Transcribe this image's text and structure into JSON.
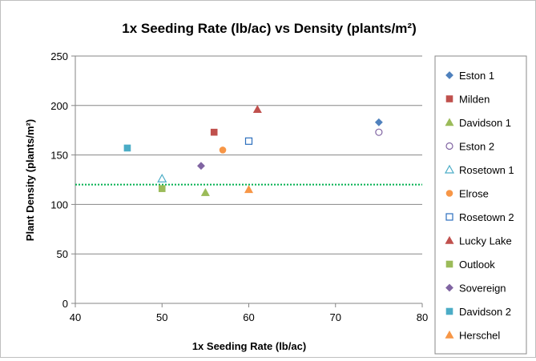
{
  "chart_data": {
    "type": "scatter",
    "title": "1x Seeding Rate (lb/ac) vs Density (plants/m²)",
    "xlabel": "1x Seeding Rate (lb/ac)",
    "ylabel": "Plant Density (plants/m²)",
    "xlim": [
      40,
      80
    ],
    "ylim": [
      0,
      250
    ],
    "xticks": [
      40,
      50,
      60,
      70,
      80
    ],
    "yticks": [
      0,
      50,
      100,
      150,
      200,
      250
    ],
    "grid": "horizontal",
    "legend_position": "right",
    "reference_line": {
      "y": 120,
      "color": "#00b050",
      "style": "dotted"
    },
    "series": [
      {
        "name": "Eston 1",
        "marker": "diamond",
        "color": "#4f81bd",
        "points": [
          [
            75,
            183
          ]
        ]
      },
      {
        "name": "Milden",
        "marker": "square",
        "color": "#c0504d",
        "points": [
          [
            56,
            173
          ]
        ]
      },
      {
        "name": "Davidson 1",
        "marker": "triangle",
        "color": "#9bbb59",
        "points": [
          [
            55,
            112
          ]
        ]
      },
      {
        "name": "Eston 2",
        "marker": "circle-open",
        "color": "#8064a2",
        "points": [
          [
            75,
            173
          ]
        ]
      },
      {
        "name": "Rosetown 1",
        "marker": "triangle-open",
        "color": "#4bacc6",
        "points": [
          [
            50,
            126
          ]
        ]
      },
      {
        "name": "Elrose",
        "marker": "circle",
        "color": "#f79646",
        "points": [
          [
            57,
            155
          ]
        ]
      },
      {
        "name": "Rosetown 2",
        "marker": "square-open",
        "color": "#2c6fbd",
        "points": [
          [
            60,
            164
          ]
        ]
      },
      {
        "name": "Lucky Lake",
        "marker": "triangle",
        "color": "#c0504d",
        "points": [
          [
            61,
            196
          ]
        ]
      },
      {
        "name": "Outlook",
        "marker": "square",
        "color": "#9bbb59",
        "points": [
          [
            50,
            116
          ]
        ]
      },
      {
        "name": "Sovereign",
        "marker": "diamond",
        "color": "#8064a2",
        "points": [
          [
            54.5,
            139
          ]
        ]
      },
      {
        "name": "Davidson 2",
        "marker": "square",
        "color": "#4bacc6",
        "points": [
          [
            46,
            157
          ]
        ]
      },
      {
        "name": "Herschel",
        "marker": "triangle",
        "color": "#f79646",
        "points": [
          [
            60,
            115
          ]
        ]
      }
    ]
  }
}
